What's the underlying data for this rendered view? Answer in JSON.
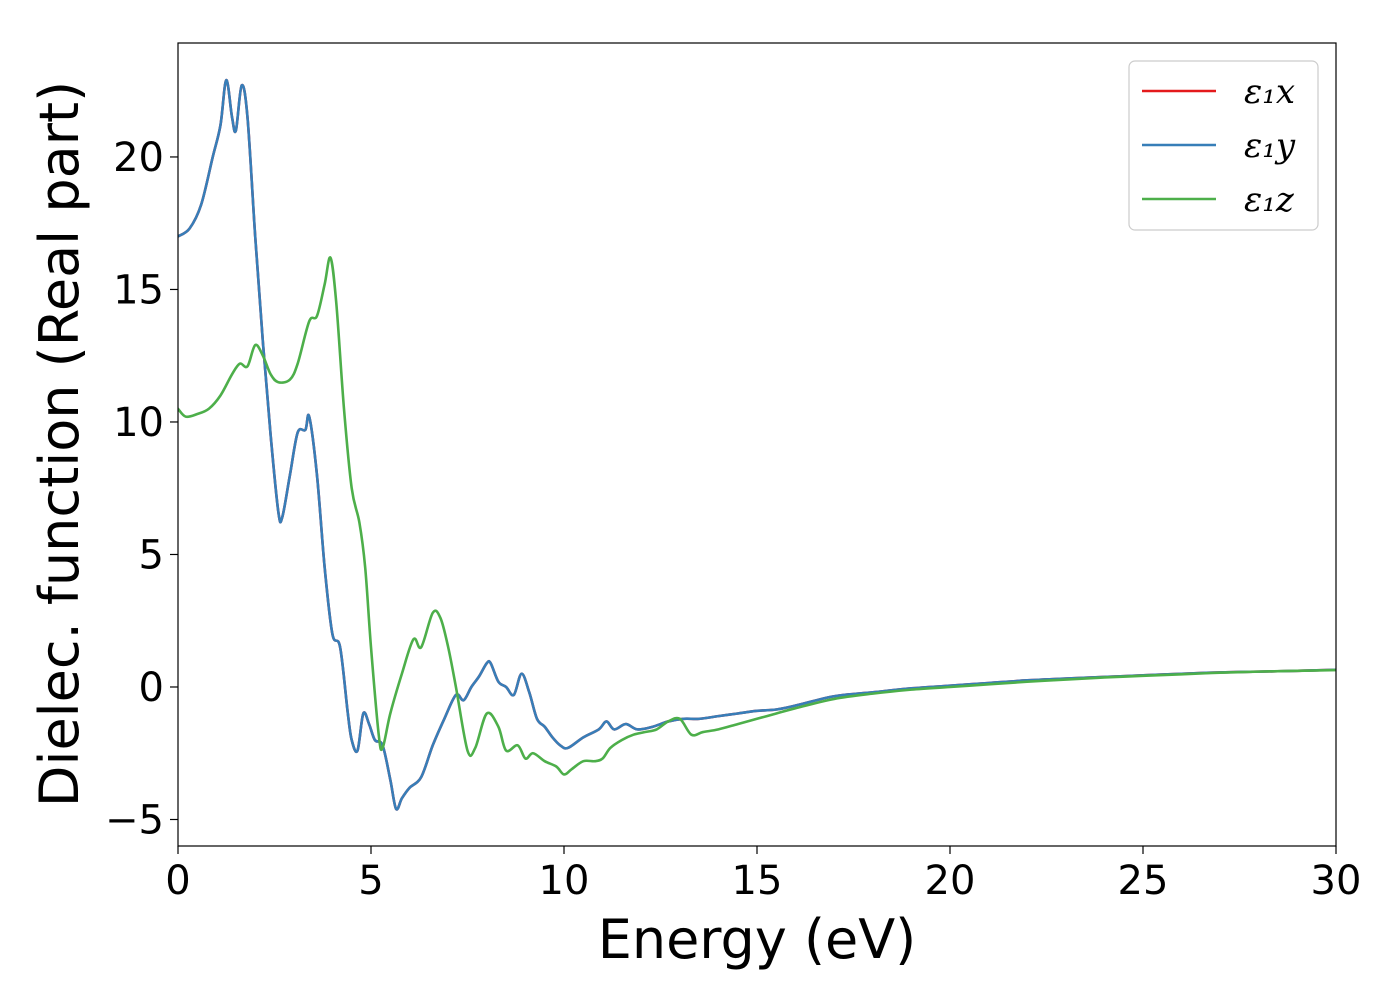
{
  "chart_data": {
    "type": "line",
    "title": "",
    "xlabel": "Energy (eV)",
    "ylabel": "Dielec. function (Real part)",
    "xlim": [
      0,
      30
    ],
    "ylim": [
      -6,
      24.3
    ],
    "xticks": [
      0,
      5,
      10,
      15,
      20,
      25,
      30
    ],
    "yticks": [
      -5,
      0,
      5,
      10,
      15,
      20
    ],
    "xtick_labels": [
      "0",
      "5",
      "10",
      "15",
      "20",
      "25",
      "30"
    ],
    "ytick_labels": [
      "−5",
      "0",
      "5",
      "10",
      "15",
      "20"
    ],
    "grid": false,
    "legend_position": "top-right",
    "series": [
      {
        "name": "ε₁x",
        "color": "#e41a1c",
        "x": [
          0,
          0.3,
          0.6,
          0.9,
          1.1,
          1.25,
          1.4,
          1.5,
          1.65,
          1.8,
          2.0,
          2.2,
          2.4,
          2.6,
          2.7,
          2.9,
          3.1,
          3.3,
          3.4,
          3.6,
          3.8,
          4.0,
          4.2,
          4.4,
          4.5,
          4.65,
          4.8,
          4.95,
          5.1,
          5.3,
          5.5,
          5.65,
          5.8,
          6.0,
          6.3,
          6.6,
          6.9,
          7.2,
          7.4,
          7.6,
          7.8,
          8.0,
          8.1,
          8.3,
          8.5,
          8.7,
          8.9,
          9.1,
          9.3,
          9.5,
          9.7,
          9.9,
          10.1,
          10.5,
          10.9,
          11.1,
          11.3,
          11.6,
          11.9,
          12.3,
          12.7,
          13.1,
          13.5,
          14.0,
          14.5,
          15.0,
          15.5,
          16,
          17,
          18,
          19,
          20,
          21,
          22,
          23,
          24,
          25,
          26,
          27,
          28,
          29,
          30
        ],
        "y": [
          17.0,
          17.3,
          18.2,
          20.0,
          21.2,
          22.9,
          21.5,
          21.0,
          22.7,
          21.5,
          17.0,
          13.0,
          9.5,
          6.6,
          6.4,
          8.0,
          9.6,
          9.7,
          10.2,
          8.0,
          4.5,
          2.0,
          1.5,
          -1.0,
          -2.0,
          -2.4,
          -1.0,
          -1.4,
          -2.0,
          -2.2,
          -3.5,
          -4.6,
          -4.2,
          -3.8,
          -3.4,
          -2.2,
          -1.2,
          -0.3,
          -0.5,
          0.0,
          0.4,
          0.9,
          0.9,
          0.2,
          0.0,
          -0.3,
          0.5,
          -0.2,
          -1.2,
          -1.5,
          -1.9,
          -2.2,
          -2.3,
          -1.9,
          -1.6,
          -1.3,
          -1.6,
          -1.4,
          -1.6,
          -1.5,
          -1.3,
          -1.2,
          -1.2,
          -1.1,
          -1.0,
          -0.9,
          -0.85,
          -0.7,
          -0.35,
          -0.2,
          -0.05,
          0.05,
          0.15,
          0.25,
          0.32,
          0.38,
          0.44,
          0.5,
          0.55,
          0.58,
          0.61,
          0.65
        ]
      },
      {
        "name": "ε₁y",
        "color": "#377eb8",
        "x": [
          0,
          0.3,
          0.6,
          0.9,
          1.1,
          1.25,
          1.4,
          1.5,
          1.65,
          1.8,
          2.0,
          2.2,
          2.4,
          2.6,
          2.7,
          2.9,
          3.1,
          3.3,
          3.4,
          3.6,
          3.8,
          4.0,
          4.2,
          4.4,
          4.5,
          4.65,
          4.8,
          4.95,
          5.1,
          5.3,
          5.5,
          5.65,
          5.8,
          6.0,
          6.3,
          6.6,
          6.9,
          7.2,
          7.4,
          7.6,
          7.8,
          8.0,
          8.1,
          8.3,
          8.5,
          8.7,
          8.9,
          9.1,
          9.3,
          9.5,
          9.7,
          9.9,
          10.1,
          10.5,
          10.9,
          11.1,
          11.3,
          11.6,
          11.9,
          12.3,
          12.7,
          13.1,
          13.5,
          14.0,
          14.5,
          15.0,
          15.5,
          16,
          17,
          18,
          19,
          20,
          21,
          22,
          23,
          24,
          25,
          26,
          27,
          28,
          29,
          30
        ],
        "y": [
          17.0,
          17.3,
          18.2,
          20.0,
          21.2,
          22.9,
          21.5,
          21.0,
          22.7,
          21.5,
          17.0,
          13.0,
          9.5,
          6.6,
          6.4,
          8.0,
          9.6,
          9.7,
          10.2,
          8.0,
          4.5,
          2.0,
          1.5,
          -1.0,
          -2.0,
          -2.4,
          -1.0,
          -1.4,
          -2.0,
          -2.2,
          -3.5,
          -4.6,
          -4.2,
          -3.8,
          -3.4,
          -2.2,
          -1.2,
          -0.3,
          -0.5,
          0.0,
          0.4,
          0.9,
          0.9,
          0.2,
          0.0,
          -0.3,
          0.5,
          -0.2,
          -1.2,
          -1.5,
          -1.9,
          -2.2,
          -2.3,
          -1.9,
          -1.6,
          -1.3,
          -1.6,
          -1.4,
          -1.6,
          -1.5,
          -1.3,
          -1.2,
          -1.2,
          -1.1,
          -1.0,
          -0.9,
          -0.85,
          -0.7,
          -0.35,
          -0.2,
          -0.05,
          0.05,
          0.15,
          0.25,
          0.32,
          0.38,
          0.44,
          0.5,
          0.55,
          0.58,
          0.61,
          0.65
        ]
      },
      {
        "name": "ε₁z",
        "color": "#4daf4a",
        "x": [
          0,
          0.2,
          0.5,
          0.8,
          1.1,
          1.4,
          1.6,
          1.8,
          2.0,
          2.2,
          2.4,
          2.6,
          2.9,
          3.1,
          3.4,
          3.6,
          3.8,
          3.95,
          4.1,
          4.3,
          4.5,
          4.7,
          4.85,
          5.0,
          5.2,
          5.3,
          5.5,
          5.8,
          6.1,
          6.3,
          6.6,
          6.8,
          7.0,
          7.2,
          7.5,
          7.7,
          8.0,
          8.3,
          8.5,
          8.8,
          9.0,
          9.2,
          9.5,
          9.8,
          10.0,
          10.2,
          10.5,
          10.8,
          11.0,
          11.2,
          11.5,
          11.8,
          12.1,
          12.4,
          12.7,
          13.0,
          13.3,
          13.6,
          14.0,
          14.5,
          15.0,
          15.5,
          16,
          17,
          18,
          19,
          20,
          21,
          22,
          23,
          24,
          25,
          26,
          27,
          28,
          29,
          30
        ],
        "y": [
          10.5,
          10.2,
          10.3,
          10.5,
          11.0,
          11.8,
          12.2,
          12.1,
          12.9,
          12.5,
          11.8,
          11.5,
          11.6,
          12.2,
          13.8,
          14.0,
          15.2,
          16.2,
          14.5,
          10.5,
          7.5,
          6.2,
          4.5,
          1.5,
          -1.8,
          -2.3,
          -1.0,
          0.5,
          1.8,
          1.5,
          2.8,
          2.6,
          1.5,
          0.0,
          -2.4,
          -2.3,
          -1.0,
          -1.5,
          -2.4,
          -2.2,
          -2.7,
          -2.5,
          -2.8,
          -3.0,
          -3.3,
          -3.1,
          -2.8,
          -2.8,
          -2.7,
          -2.3,
          -2.0,
          -1.8,
          -1.7,
          -1.6,
          -1.3,
          -1.2,
          -1.8,
          -1.7,
          -1.6,
          -1.4,
          -1.2,
          -1.0,
          -0.8,
          -0.45,
          -0.25,
          -0.1,
          0.0,
          0.1,
          0.2,
          0.28,
          0.36,
          0.42,
          0.48,
          0.54,
          0.58,
          0.61,
          0.64
        ]
      }
    ]
  }
}
